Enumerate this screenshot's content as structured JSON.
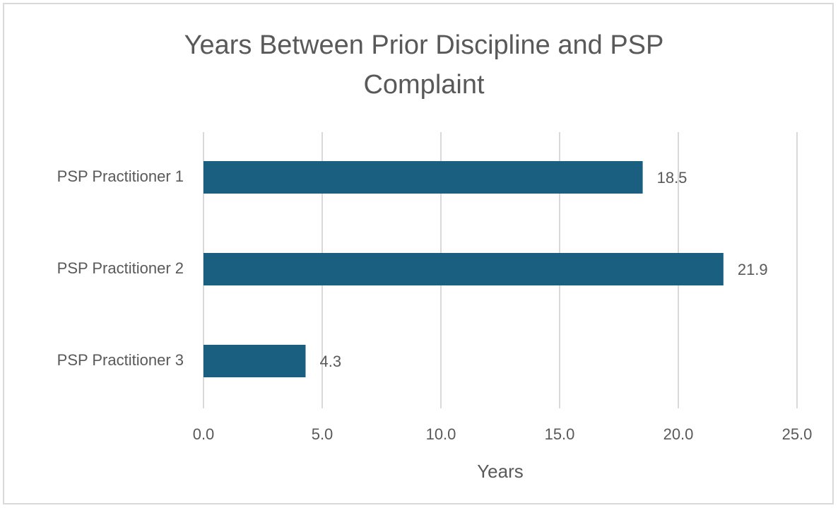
{
  "chart_data": {
    "type": "bar",
    "orientation": "horizontal",
    "title": "Years Between Prior Discipline and PSP Complaint",
    "categories": [
      "PSP Practitioner 1",
      "PSP Practitioner 2",
      "PSP Practitioner 3"
    ],
    "values": [
      18.5,
      21.9,
      4.3
    ],
    "color": "#1a5f80",
    "xlabel": "Years",
    "xlim": [
      0,
      25
    ],
    "xticks": [
      {
        "value": 0,
        "label": "0.0"
      },
      {
        "value": 5,
        "label": "5.0"
      },
      {
        "value": 10,
        "label": "10.0"
      },
      {
        "value": 15,
        "label": "15.0"
      },
      {
        "value": 20,
        "label": "20.0"
      },
      {
        "value": 25,
        "label": "25.0"
      }
    ],
    "grid": true
  }
}
